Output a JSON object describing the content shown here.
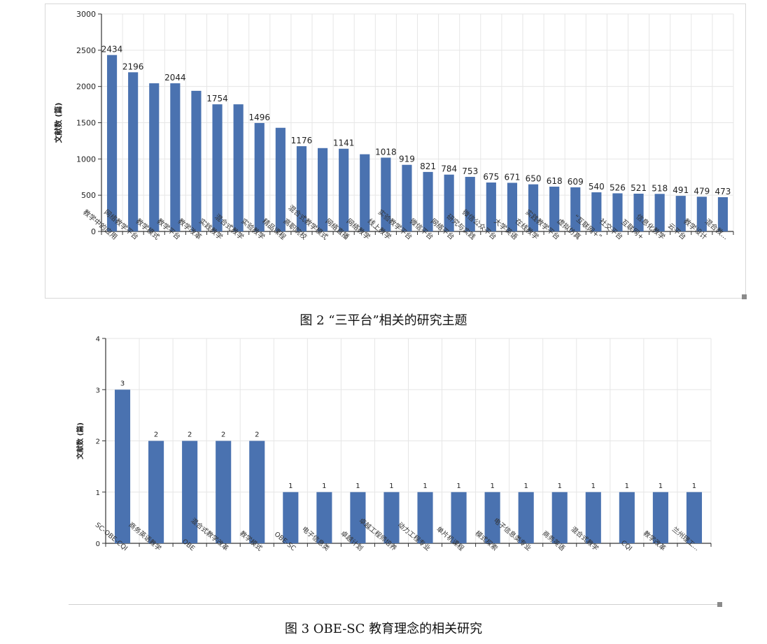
{
  "figures": [
    {
      "caption": "图 2 “三平台”相关的研究主题"
    },
    {
      "caption": "图 3 OBE-SC 教育理念的相关研究"
    }
  ],
  "colors": {
    "bar": "#4a72b0",
    "grid": "#e6e6e6",
    "axis": "#333333"
  },
  "chart_data": [
    {
      "type": "bar",
      "title": "",
      "xlabel": "",
      "ylabel": "文献数 (篇)",
      "ylim": [
        0,
        3000
      ],
      "yticks": [
        0,
        500,
        1000,
        1500,
        2000,
        2500,
        3000
      ],
      "grid": true,
      "categories": [
        "教学中的应用",
        "网络教学平台",
        "教学模式",
        "教学平台",
        "教学改革",
        "实践教学",
        "混合式教学",
        "实验教学",
        "精品课程",
        "高职院校",
        "混合式教学模式",
        "网络直播",
        "网络教学",
        "线上教学",
        "实验教学平台",
        "微信平台",
        "网络平台",
        "研究与实践",
        "微信公众平台",
        "大学英语",
        "在线教学",
        "实践教学平台",
        "虚拟仿真",
        "“互联网+”",
        "社交平台",
        "互联网+",
        "信息化教学",
        "云平台",
        "教学设计",
        "混合教..."
      ],
      "values": [
        2434,
        2196,
        2044,
        2044,
        1940,
        1754,
        1754,
        1496,
        1430,
        1176,
        1150,
        1141,
        1065,
        1018,
        919,
        821,
        784,
        753,
        675,
        671,
        650,
        618,
        609,
        540,
        526,
        521,
        518,
        491,
        479,
        473
      ],
      "data_labels": [
        "2434",
        "2196",
        "",
        "2044",
        "",
        "1754",
        "",
        "1496",
        "",
        "1176",
        "",
        "1141",
        "",
        "1018",
        "919",
        "821",
        "784",
        "753",
        "675",
        "671",
        "650",
        "618",
        "609",
        "540",
        "526",
        "521",
        "518",
        "491",
        "479",
        "473"
      ]
    },
    {
      "type": "bar",
      "title": "",
      "xlabel": "",
      "ylabel": "文献数 (篇)",
      "ylim": [
        0,
        4
      ],
      "yticks": [
        0,
        1,
        2,
        3,
        4
      ],
      "grid": true,
      "categories": [
        "SC-OBE-CQI",
        "商务英语教学",
        "OBE",
        "混合式教学改革",
        "教学模式",
        "OBE-SC",
        "电子信息类",
        "卓越计划",
        "卓越工程师培养",
        "动力工程专业",
        "单片机课程",
        "模式探索",
        "电子信息类专业",
        "商务英语",
        "混合式教学",
        "CQI",
        "教学改革",
        "兰州理工..."
      ],
      "values": [
        3,
        2,
        2,
        2,
        2,
        1,
        1,
        1,
        1,
        1,
        1,
        1,
        1,
        1,
        1,
        1,
        1,
        1
      ],
      "data_labels": [
        "3",
        "2",
        "2",
        "2",
        "2",
        "1",
        "1",
        "1",
        "1",
        "1",
        "1",
        "1",
        "1",
        "1",
        "1",
        "1",
        "1",
        "1"
      ]
    }
  ]
}
